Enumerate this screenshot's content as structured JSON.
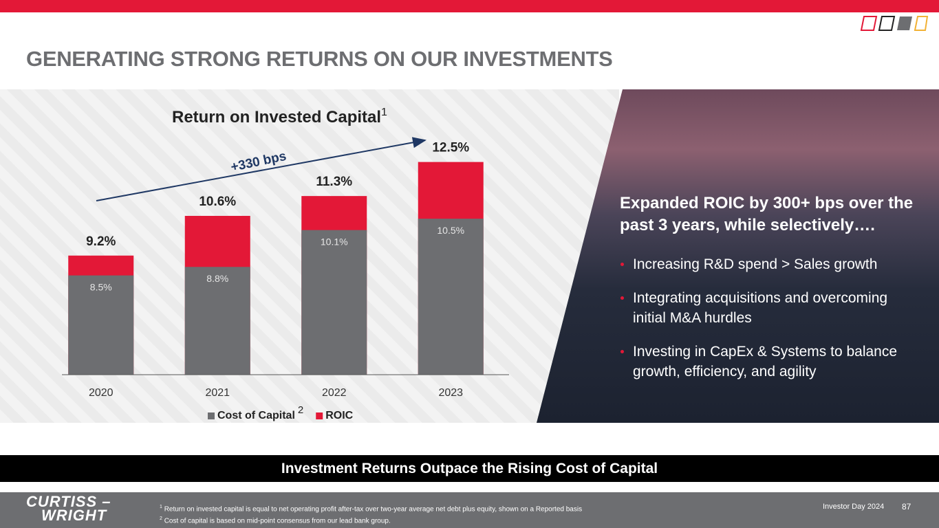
{
  "header": {
    "title": "GENERATING STRONG RETURNS ON OUR INVESTMENTS"
  },
  "chart_data": {
    "type": "bar",
    "title": "Return on Invested Capital",
    "title_footnote": "1",
    "annotation": "+330 bps",
    "categories": [
      "2020",
      "2021",
      "2022",
      "2023"
    ],
    "series": [
      {
        "name": "Cost of Capital",
        "footnote_mark": "2",
        "color": "#6d6e71",
        "values": [
          8.5,
          8.8,
          10.1,
          10.5
        ],
        "value_labels": [
          "8.5%",
          "8.8%",
          "10.1%",
          "10.5%"
        ]
      },
      {
        "name": "ROIC",
        "color": "#e31837",
        "values": [
          9.2,
          10.6,
          11.3,
          12.5
        ],
        "value_labels": [
          "9.2%",
          "10.6%",
          "11.3%",
          "12.5%"
        ]
      }
    ],
    "ylim": [
      5,
      13
    ]
  },
  "panel": {
    "heading": "Expanded ROIC by 300+ bps over the past 3 years, while selectively….",
    "bullets": [
      "Increasing R&D spend > Sales growth",
      "Integrating acquisitions and overcoming initial M&A hurdles",
      "Investing in CapEx & Systems to balance growth, efficiency, and agility"
    ]
  },
  "banner": "Investment Returns Outpace the Rising Cost of Capital",
  "footer": {
    "logo": [
      "CURTISS –",
      "WRIGHT"
    ],
    "footnotes": [
      {
        "mark": "1",
        "text": "Return on invested capital is equal to net operating profit after-tax over two-year average net debt plus equity, shown on a Reported basis"
      },
      {
        "mark": "2",
        "text": "Cost of capital is based on mid-point consensus from our lead bank group."
      }
    ],
    "event": "Investor Day 2024",
    "page": "87"
  }
}
